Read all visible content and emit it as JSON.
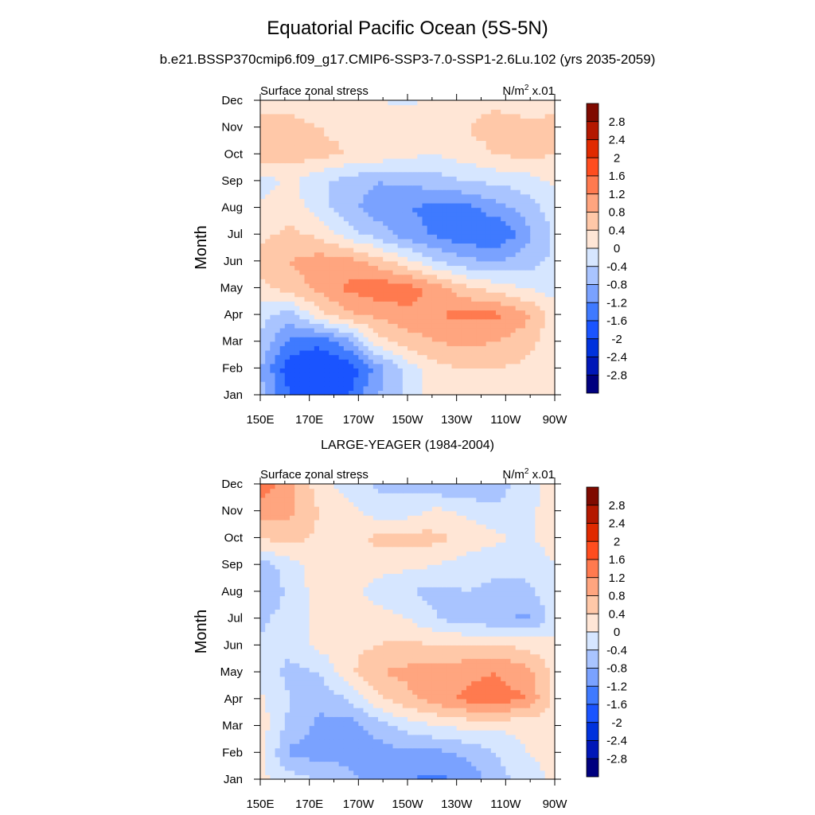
{
  "figure": {
    "title": "Equatorial Pacific Ocean (5S-5N)",
    "subtitle": "b.e21.BSSP370cmip6.f09_g17.CMIP6-SSP3-7.0-SSP1-2.6Lu.102 (yrs 2035-2059)"
  },
  "chart_data": [
    {
      "type": "heatmap",
      "title": "",
      "left_label": "Surface zonal stress",
      "units_label": {
        "base": "N/m",
        "sup": "2",
        "suffix": " x.01"
      },
      "ylabel": "Month",
      "x_ticks": [
        "150E",
        "170E",
        "170W",
        "150W",
        "130W",
        "110W",
        "90W"
      ],
      "x_range_deg_east": [
        150,
        270
      ],
      "y_ticks": [
        "Jan",
        "Feb",
        "Mar",
        "Apr",
        "May",
        "Jun",
        "Jul",
        "Aug",
        "Sep",
        "Oct",
        "Nov",
        "Dec"
      ],
      "columns_deg_east": [
        150,
        162,
        174,
        186,
        198,
        210,
        222,
        234,
        246,
        258,
        270
      ],
      "values_by_month": [
        [
          -0.6,
          -1.6,
          -1.8,
          -1.6,
          -0.8,
          -0.3,
          0.2,
          0.3,
          0.3,
          0.2,
          0.1
        ],
        [
          -0.8,
          -1.9,
          -2.0,
          -1.9,
          -1.0,
          -0.2,
          0.3,
          0.4,
          0.4,
          0.3,
          0.1
        ],
        [
          -0.4,
          -1.3,
          -1.5,
          -0.9,
          0.2,
          0.6,
          0.8,
          0.9,
          0.8,
          0.6,
          0.1
        ],
        [
          -0.3,
          -0.6,
          0.3,
          0.7,
          0.9,
          1.1,
          1.2,
          1.3,
          1.3,
          0.9,
          0.2
        ],
        [
          0.3,
          0.6,
          0.9,
          1.3,
          1.5,
          1.4,
          1.0,
          0.5,
          0.2,
          0.0,
          -0.2
        ],
        [
          0.5,
          0.8,
          1.0,
          1.0,
          0.6,
          0.1,
          -0.4,
          -0.7,
          -0.8,
          -0.6,
          -0.3
        ],
        [
          0.3,
          0.5,
          0.3,
          -0.2,
          -0.6,
          -1.0,
          -1.3,
          -1.5,
          -1.6,
          -1.0,
          -0.3
        ],
        [
          0.1,
          0.2,
          -0.2,
          -0.7,
          -1.0,
          -1.2,
          -1.3,
          -1.3,
          -1.0,
          -0.6,
          -0.2
        ],
        [
          -0.2,
          0.1,
          -0.3,
          -0.6,
          -0.8,
          -0.7,
          -0.6,
          -0.4,
          -0.3,
          -0.2,
          0.1
        ],
        [
          0.7,
          0.6,
          0.5,
          0.4,
          0.3,
          0.1,
          0.0,
          0.2,
          0.4,
          0.5,
          0.4
        ],
        [
          0.5,
          0.5,
          0.4,
          0.3,
          0.4,
          0.3,
          0.2,
          0.4,
          0.6,
          0.5,
          0.5
        ],
        [
          0.3,
          0.3,
          0.2,
          0.1,
          0.0,
          -0.1,
          0.1,
          0.2,
          0.3,
          0.2,
          0.3
        ]
      ]
    },
    {
      "type": "heatmap",
      "title": "LARGE-YEAGER (1984-2004)",
      "left_label": "Surface zonal stress",
      "units_label": {
        "base": "N/m",
        "sup": "2",
        "suffix": " x.01"
      },
      "ylabel": "Month",
      "x_ticks": [
        "150E",
        "170E",
        "170W",
        "150W",
        "130W",
        "110W",
        "90W"
      ],
      "x_range_deg_east": [
        150,
        270
      ],
      "y_ticks": [
        "Jan",
        "Feb",
        "Mar",
        "Apr",
        "May",
        "Jun",
        "Jul",
        "Aug",
        "Sep",
        "Oct",
        "Nov",
        "Dec"
      ],
      "columns_deg_east": [
        150,
        162,
        174,
        186,
        198,
        210,
        222,
        234,
        246,
        258,
        270
      ],
      "values_by_month": [
        [
          0.1,
          -0.2,
          -0.4,
          -0.7,
          -1.0,
          -1.2,
          -1.3,
          -1.1,
          -0.6,
          -0.2,
          0.1
        ],
        [
          0.2,
          -0.9,
          -1.0,
          -0.9,
          -1.0,
          -0.9,
          -0.9,
          -0.7,
          -0.4,
          0.0,
          0.1
        ],
        [
          0.2,
          -0.5,
          -0.9,
          -1.0,
          -0.6,
          -0.2,
          0.0,
          0.1,
          0.1,
          0.1,
          0.1
        ],
        [
          0.1,
          -0.4,
          -0.7,
          -0.4,
          0.3,
          0.7,
          1.0,
          1.3,
          1.4,
          1.2,
          0.3
        ],
        [
          -0.2,
          -0.5,
          -0.4,
          0.3,
          0.8,
          0.9,
          1.0,
          1.1,
          1.2,
          1.0,
          0.3
        ],
        [
          -0.3,
          -0.3,
          0.1,
          0.3,
          0.4,
          0.5,
          0.4,
          0.4,
          0.4,
          0.3,
          0.1
        ],
        [
          -0.5,
          -0.2,
          0.1,
          0.2,
          0.2,
          0.0,
          -0.4,
          -0.6,
          -0.7,
          -0.9,
          -0.2
        ],
        [
          -0.8,
          -0.3,
          0.2,
          0.2,
          -0.2,
          -0.4,
          -0.5,
          -0.4,
          -0.5,
          -0.5,
          -0.2
        ],
        [
          -0.6,
          -0.2,
          0.2,
          0.3,
          0.2,
          0.1,
          0.0,
          -0.2,
          -0.3,
          -0.3,
          0.0
        ],
        [
          0.4,
          0.6,
          0.3,
          0.2,
          0.5,
          0.6,
          0.5,
          0.3,
          0.1,
          -0.1,
          0.2
        ],
        [
          1.0,
          0.9,
          0.4,
          0.1,
          -0.2,
          -0.2,
          0.1,
          -0.1,
          -0.3,
          -0.2,
          0.3
        ],
        [
          1.5,
          0.9,
          0.2,
          -0.2,
          -0.5,
          -0.5,
          -0.7,
          -0.8,
          -0.6,
          -0.2,
          0.2
        ]
      ]
    }
  ],
  "colorbar": {
    "labels": [
      "2.8",
      "2.4",
      "2",
      "1.6",
      "1.2",
      "0.8",
      "0.4",
      "0",
      "-0.4",
      "-0.8",
      "-1.2",
      "-1.6",
      "-2",
      "-2.4",
      "-2.8"
    ],
    "levels": [
      -2.8,
      -2.4,
      -2.0,
      -1.6,
      -1.2,
      -0.8,
      -0.4,
      0.0,
      0.4,
      0.8,
      1.2,
      1.6,
      2.0,
      2.4,
      2.8
    ],
    "colors_low_to_high": [
      "#00007f",
      "#0017b8",
      "#0032dd",
      "#1a54ff",
      "#3f7aff",
      "#7aa2ff",
      "#a9c4ff",
      "#d6e6ff",
      "#ffe6d6",
      "#ffc8a8",
      "#ffa57f",
      "#ff7a4f",
      "#ff4d1f",
      "#e02a00",
      "#b41800",
      "#7f0a00"
    ]
  }
}
